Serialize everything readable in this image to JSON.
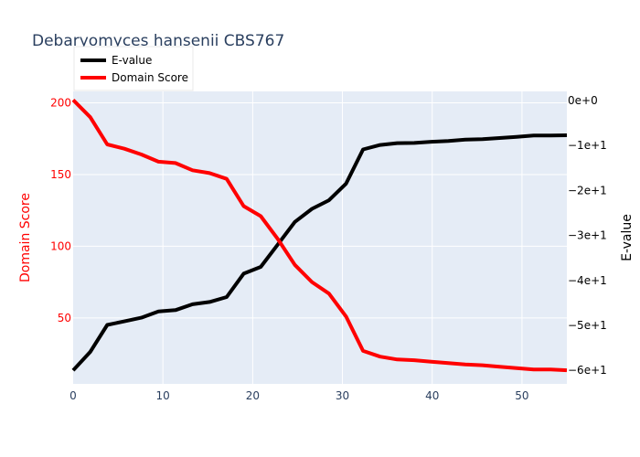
{
  "chart_data": {
    "type": "line",
    "title": "Debaryomyces hansenii CBS767",
    "xlabel": "",
    "ylabel_left": "Domain Score",
    "ylabel_right": "E-value",
    "xlim": [
      0,
      55
    ],
    "ylim_left": [
      4,
      208
    ],
    "ylim_right": [
      -63,
      2
    ],
    "x_ticks": [
      "0",
      "10",
      "20",
      "30",
      "40",
      "50"
    ],
    "y_left_ticks": [
      "50",
      "100",
      "150",
      "200"
    ],
    "y_right_ticks": [
      "0e+0",
      "−1e+1",
      "−2e+1",
      "−3e+1",
      "−4e+1",
      "−5e+1",
      "−6e+1"
    ],
    "legend_position": "top-left",
    "grid": true,
    "plot_background": "#e5ecf6",
    "series": [
      {
        "name": "E-value",
        "axis": "right",
        "color": "#000000",
        "x": [
          0,
          1.9,
          3.8,
          5.7,
          7.6,
          9.5,
          11.4,
          13.3,
          15.2,
          17.1,
          19,
          20.9,
          22.8,
          24.7,
          26.6,
          28.5,
          30.4,
          32.3,
          34.2,
          36.1,
          38,
          39.9,
          41.8,
          43.7,
          45.6,
          47.5,
          49.4,
          51.3,
          53.2,
          55
        ],
        "values": [
          -60,
          -55.9,
          -49.9,
          -49.1,
          -48.3,
          -46.9,
          -46.6,
          -45.3,
          -44.8,
          -43.7,
          -38.5,
          -37.0,
          -32.0,
          -27.0,
          -24.1,
          -22.2,
          -18.5,
          -10.9,
          -9.9,
          -9.5,
          -9.45,
          -9.2,
          -9.0,
          -8.7,
          -8.6,
          -8.35,
          -8.1,
          -7.8,
          -7.8,
          -7.75
        ]
      },
      {
        "name": "Domain Score",
        "axis": "left",
        "color": "#ff0000",
        "x": [
          0,
          1.9,
          3.8,
          5.7,
          7.6,
          9.5,
          11.4,
          13.3,
          15.2,
          17.1,
          19,
          20.9,
          22.8,
          24.7,
          26.6,
          28.5,
          30.4,
          32.3,
          34.2,
          36.1,
          38,
          39.9,
          41.8,
          43.7,
          45.6,
          47.5,
          49.4,
          51.3,
          53.2,
          55
        ],
        "values": [
          202,
          190,
          171,
          168,
          164,
          159,
          158,
          153,
          151,
          147,
          128,
          121,
          105,
          87,
          75,
          67,
          51,
          27,
          23,
          21,
          20.5,
          19.5,
          18.5,
          17.5,
          17,
          16,
          15,
          14,
          14,
          13.5
        ]
      }
    ]
  }
}
